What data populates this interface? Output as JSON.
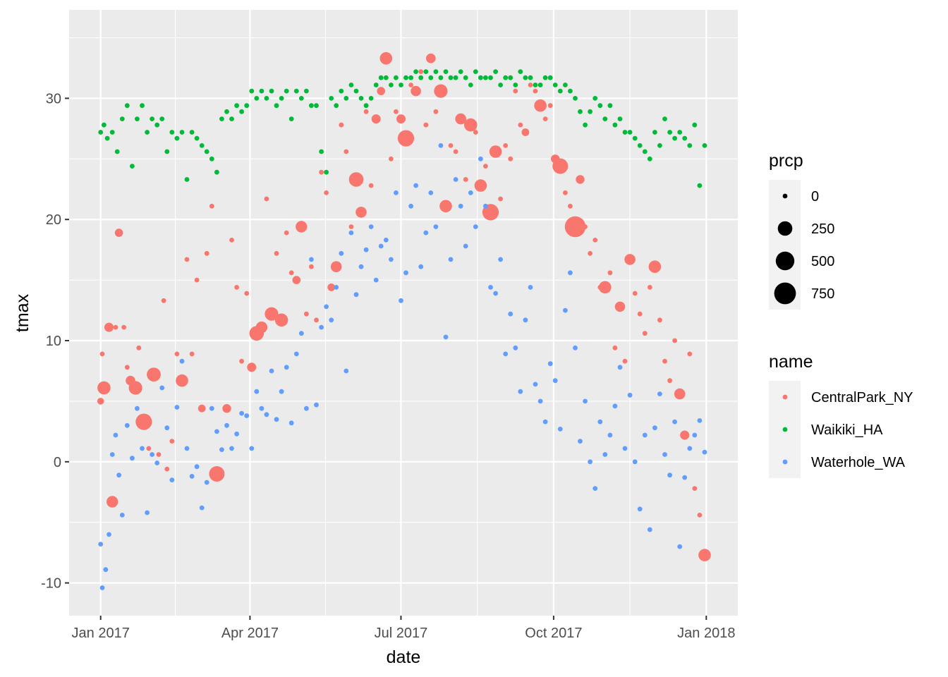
{
  "chart_data": {
    "type": "scatter",
    "title": "",
    "xlabel": "date",
    "ylabel": "tmax",
    "x_is_date": true,
    "xlim": [
      "2016-12-13",
      "2018-01-20"
    ],
    "ylim": [
      -12.7,
      37.3
    ],
    "x_ticks": [
      {
        "value": "2017-01-01",
        "label": "Jan 2017"
      },
      {
        "value": "2017-04-01",
        "label": "Apr 2017"
      },
      {
        "value": "2017-07-01",
        "label": "Jul 2017"
      },
      {
        "value": "2017-10-01",
        "label": "Oct 2017"
      },
      {
        "value": "2018-01-01",
        "label": "Jan 2018"
      }
    ],
    "y_ticks": [
      {
        "value": -10,
        "label": "-10"
      },
      {
        "value": 0,
        "label": "0"
      },
      {
        "value": 10,
        "label": "10"
      },
      {
        "value": 20,
        "label": "20"
      },
      {
        "value": 30,
        "label": "30"
      }
    ],
    "grid": true,
    "panel_background": "#ebebeb",
    "size_legend": {
      "title": "prcp",
      "entries": [
        {
          "value": 0,
          "label": "0"
        },
        {
          "value": 250,
          "label": "250"
        },
        {
          "value": 500,
          "label": "500"
        },
        {
          "value": 750,
          "label": "750"
        }
      ]
    },
    "color_legend": {
      "title": "name",
      "placement": "right"
    },
    "series": [
      {
        "name": "CentralPark_NY",
        "color": "#F8766D",
        "x": [
          "2017-01-01",
          "2017-01-02",
          "2017-01-03",
          "2017-01-06",
          "2017-01-08",
          "2017-01-10",
          "2017-01-12",
          "2017-01-15",
          "2017-01-17",
          "2017-01-19",
          "2017-01-22",
          "2017-01-24",
          "2017-01-27",
          "2017-01-30",
          "2017-02-02",
          "2017-02-05",
          "2017-02-08",
          "2017-02-10",
          "2017-02-13",
          "2017-02-16",
          "2017-02-19",
          "2017-02-22",
          "2017-02-25",
          "2017-02-28",
          "2017-03-03",
          "2017-03-06",
          "2017-03-09",
          "2017-03-12",
          "2017-03-15",
          "2017-03-18",
          "2017-03-21",
          "2017-03-24",
          "2017-03-27",
          "2017-03-30",
          "2017-04-02",
          "2017-04-05",
          "2017-04-08",
          "2017-04-11",
          "2017-04-14",
          "2017-04-17",
          "2017-04-20",
          "2017-04-23",
          "2017-04-26",
          "2017-04-29",
          "2017-05-02",
          "2017-05-05",
          "2017-05-08",
          "2017-05-11",
          "2017-05-14",
          "2017-05-17",
          "2017-05-20",
          "2017-05-23",
          "2017-05-26",
          "2017-05-29",
          "2017-06-01",
          "2017-06-04",
          "2017-06-07",
          "2017-06-10",
          "2017-06-13",
          "2017-06-16",
          "2017-06-19",
          "2017-06-22",
          "2017-06-25",
          "2017-06-28",
          "2017-07-01",
          "2017-07-04",
          "2017-07-07",
          "2017-07-10",
          "2017-07-13",
          "2017-07-16",
          "2017-07-19",
          "2017-07-22",
          "2017-07-25",
          "2017-07-28",
          "2017-07-31",
          "2017-08-03",
          "2017-08-06",
          "2017-08-09",
          "2017-08-12",
          "2017-08-15",
          "2017-08-18",
          "2017-08-21",
          "2017-08-24",
          "2017-08-27",
          "2017-08-30",
          "2017-09-02",
          "2017-09-05",
          "2017-09-08",
          "2017-09-11",
          "2017-09-14",
          "2017-09-17",
          "2017-09-20",
          "2017-09-23",
          "2017-09-26",
          "2017-09-29",
          "2017-10-02",
          "2017-10-05",
          "2017-10-08",
          "2017-10-11",
          "2017-10-14",
          "2017-10-17",
          "2017-10-20",
          "2017-10-23",
          "2017-10-26",
          "2017-10-29",
          "2017-11-01",
          "2017-11-04",
          "2017-11-07",
          "2017-11-10",
          "2017-11-13",
          "2017-11-16",
          "2017-11-19",
          "2017-11-22",
          "2017-11-25",
          "2017-11-28",
          "2017-12-01",
          "2017-12-04",
          "2017-12-07",
          "2017-12-10",
          "2017-12-13",
          "2017-12-16",
          "2017-12-19",
          "2017-12-22",
          "2017-12-25",
          "2017-12-28",
          "2017-12-31"
        ],
        "y": [
          5.0,
          8.9,
          6.1,
          11.1,
          -3.3,
          11.1,
          18.9,
          11.1,
          7.8,
          6.7,
          6.1,
          9.4,
          3.3,
          1.1,
          7.2,
          0.6,
          13.3,
          -0.6,
          1.7,
          8.9,
          6.7,
          16.7,
          8.9,
          15.0,
          4.4,
          17.2,
          21.1,
          -1.0,
          -1.0,
          4.4,
          18.3,
          14.4,
          8.3,
          13.9,
          7.8,
          10.6,
          11.1,
          21.7,
          12.2,
          17.2,
          11.7,
          18.9,
          15.6,
          15.0,
          19.4,
          12.2,
          16.1,
          11.7,
          23.9,
          22.2,
          14.4,
          16.1,
          27.8,
          25.6,
          19.4,
          23.3,
          20.6,
          28.9,
          22.8,
          28.3,
          30.6,
          33.3,
          25.0,
          28.9,
          28.3,
          26.7,
          31.1,
          30.6,
          32.2,
          27.8,
          33.3,
          28.9,
          30.6,
          21.1,
          26.1,
          25.6,
          28.3,
          23.3,
          27.8,
          27.2,
          22.8,
          24.4,
          20.6,
          25.6,
          21.7,
          26.1,
          25.0,
          30.6,
          27.8,
          27.2,
          31.1,
          30.6,
          29.4,
          28.3,
          29.4,
          25.0,
          24.4,
          22.2,
          21.1,
          19.4,
          23.3,
          19.4,
          17.2,
          18.3,
          14.4,
          14.4,
          15.6,
          9.4,
          12.8,
          8.3,
          16.7,
          13.9,
          12.2,
          10.6,
          14.4,
          16.1,
          11.7,
          8.3,
          6.7,
          10.0,
          5.6,
          2.2,
          8.9,
          -2.2,
          -4.4,
          -7.7
        ],
        "prcp": [
          10,
          0,
          180,
          50,
          120,
          0,
          30,
          0,
          0,
          60,
          200,
          0,
          350,
          0,
          220,
          0,
          0,
          0,
          0,
          0,
          150,
          0,
          0,
          0,
          20,
          0,
          0,
          300,
          0,
          40,
          0,
          0,
          0,
          0,
          50,
          250,
          120,
          0,
          200,
          0,
          180,
          0,
          0,
          30,
          120,
          0,
          0,
          0,
          0,
          0,
          20,
          100,
          0,
          0,
          0,
          250,
          100,
          0,
          0,
          50,
          30,
          150,
          0,
          0,
          50,
          350,
          0,
          80,
          0,
          0,
          60,
          0,
          200,
          150,
          0,
          0,
          100,
          0,
          180,
          0,
          150,
          0,
          350,
          150,
          0,
          0,
          0,
          0,
          0,
          20,
          0,
          0,
          150,
          0,
          0,
          40,
          300,
          0,
          0,
          680,
          40,
          0,
          0,
          0,
          0,
          150,
          0,
          0,
          80,
          0,
          100,
          0,
          0,
          0,
          0,
          150,
          0,
          0,
          0,
          0,
          100,
          50,
          0,
          0,
          0,
          150,
          50,
          0
        ]
      },
      {
        "name": "Waikiki_HA",
        "color": "#00BA38",
        "x": [
          "2017-01-01",
          "2017-01-03",
          "2017-01-05",
          "2017-01-08",
          "2017-01-11",
          "2017-01-14",
          "2017-01-17",
          "2017-01-20",
          "2017-01-23",
          "2017-01-26",
          "2017-01-29",
          "2017-02-01",
          "2017-02-04",
          "2017-02-07",
          "2017-02-10",
          "2017-02-13",
          "2017-02-16",
          "2017-02-19",
          "2017-02-22",
          "2017-02-25",
          "2017-02-28",
          "2017-03-03",
          "2017-03-06",
          "2017-03-09",
          "2017-03-12",
          "2017-03-15",
          "2017-03-18",
          "2017-03-21",
          "2017-03-24",
          "2017-03-27",
          "2017-03-30",
          "2017-04-02",
          "2017-04-05",
          "2017-04-08",
          "2017-04-11",
          "2017-04-14",
          "2017-04-17",
          "2017-04-20",
          "2017-04-23",
          "2017-04-26",
          "2017-04-29",
          "2017-05-02",
          "2017-05-05",
          "2017-05-08",
          "2017-05-11",
          "2017-05-14",
          "2017-05-17",
          "2017-05-20",
          "2017-05-23",
          "2017-05-26",
          "2017-05-29",
          "2017-06-01",
          "2017-06-04",
          "2017-06-07",
          "2017-06-10",
          "2017-06-13",
          "2017-06-16",
          "2017-06-19",
          "2017-06-22",
          "2017-06-25",
          "2017-06-28",
          "2017-07-01",
          "2017-07-04",
          "2017-07-07",
          "2017-07-10",
          "2017-07-13",
          "2017-07-16",
          "2017-07-19",
          "2017-07-22",
          "2017-07-25",
          "2017-07-28",
          "2017-07-31",
          "2017-08-03",
          "2017-08-06",
          "2017-08-09",
          "2017-08-12",
          "2017-08-15",
          "2017-08-18",
          "2017-08-21",
          "2017-08-24",
          "2017-08-27",
          "2017-08-30",
          "2017-09-02",
          "2017-09-05",
          "2017-09-08",
          "2017-09-11",
          "2017-09-14",
          "2017-09-17",
          "2017-09-20",
          "2017-09-23",
          "2017-09-26",
          "2017-09-29",
          "2017-10-02",
          "2017-10-05",
          "2017-10-08",
          "2017-10-11",
          "2017-10-14",
          "2017-10-17",
          "2017-10-20",
          "2017-10-23",
          "2017-10-26",
          "2017-10-29",
          "2017-11-01",
          "2017-11-04",
          "2017-11-07",
          "2017-11-10",
          "2017-11-13",
          "2017-11-16",
          "2017-11-19",
          "2017-11-22",
          "2017-11-25",
          "2017-11-28",
          "2017-12-01",
          "2017-12-04",
          "2017-12-07",
          "2017-12-10",
          "2017-12-13",
          "2017-12-16",
          "2017-12-19",
          "2017-12-22",
          "2017-12-25",
          "2017-12-28",
          "2017-12-31"
        ],
        "y": [
          27.2,
          27.8,
          26.7,
          27.2,
          25.6,
          28.3,
          29.4,
          24.4,
          28.3,
          29.4,
          27.2,
          28.3,
          27.8,
          28.3,
          25.6,
          27.2,
          26.7,
          27.2,
          23.3,
          27.2,
          26.7,
          26.1,
          25.6,
          25.0,
          23.9,
          28.3,
          28.9,
          28.3,
          29.4,
          28.9,
          29.4,
          30.6,
          30.0,
          30.6,
          30.0,
          30.6,
          29.4,
          30.0,
          30.6,
          28.3,
          30.6,
          30.0,
          30.6,
          29.4,
          29.4,
          25.6,
          23.9,
          30.0,
          29.4,
          30.6,
          30.0,
          31.1,
          30.6,
          30.0,
          29.4,
          30.0,
          31.1,
          31.7,
          31.7,
          31.1,
          31.7,
          31.1,
          31.7,
          31.7,
          32.2,
          31.7,
          32.2,
          31.7,
          32.2,
          31.7,
          32.2,
          31.7,
          31.7,
          32.2,
          31.7,
          31.1,
          32.2,
          31.7,
          31.7,
          31.7,
          32.2,
          31.1,
          31.7,
          31.7,
          31.1,
          32.2,
          31.7,
          31.7,
          31.1,
          31.1,
          31.7,
          31.7,
          31.1,
          30.6,
          31.1,
          30.6,
          30.0,
          28.9,
          27.8,
          28.9,
          30.0,
          29.4,
          28.3,
          29.4,
          27.8,
          28.3,
          27.2,
          27.2,
          26.7,
          26.1,
          25.6,
          25.0,
          27.2,
          26.1,
          28.3,
          27.2,
          26.7,
          27.2,
          26.7,
          26.1,
          27.8,
          22.8,
          26.1
        ]
      },
      {
        "name": "Waterhole_WA",
        "color": "#619CFF",
        "x": [
          "2017-01-01",
          "2017-01-02",
          "2017-01-04",
          "2017-01-06",
          "2017-01-08",
          "2017-01-10",
          "2017-01-12",
          "2017-01-14",
          "2017-01-17",
          "2017-01-20",
          "2017-01-23",
          "2017-01-26",
          "2017-01-29",
          "2017-02-01",
          "2017-02-04",
          "2017-02-07",
          "2017-02-10",
          "2017-02-13",
          "2017-02-16",
          "2017-02-19",
          "2017-02-22",
          "2017-02-25",
          "2017-02-28",
          "2017-03-03",
          "2017-03-06",
          "2017-03-09",
          "2017-03-12",
          "2017-03-15",
          "2017-03-18",
          "2017-03-21",
          "2017-03-24",
          "2017-03-27",
          "2017-03-30",
          "2017-04-02",
          "2017-04-05",
          "2017-04-08",
          "2017-04-11",
          "2017-04-14",
          "2017-04-17",
          "2017-04-20",
          "2017-04-23",
          "2017-04-26",
          "2017-04-29",
          "2017-05-02",
          "2017-05-05",
          "2017-05-08",
          "2017-05-11",
          "2017-05-14",
          "2017-05-17",
          "2017-05-20",
          "2017-05-23",
          "2017-05-26",
          "2017-05-29",
          "2017-06-01",
          "2017-06-04",
          "2017-06-07",
          "2017-06-10",
          "2017-06-13",
          "2017-06-16",
          "2017-06-19",
          "2017-06-22",
          "2017-06-25",
          "2017-06-28",
          "2017-07-01",
          "2017-07-04",
          "2017-07-07",
          "2017-07-10",
          "2017-07-13",
          "2017-07-16",
          "2017-07-19",
          "2017-07-22",
          "2017-07-25",
          "2017-07-28",
          "2017-07-31",
          "2017-08-03",
          "2017-08-06",
          "2017-08-09",
          "2017-08-12",
          "2017-08-15",
          "2017-08-18",
          "2017-08-21",
          "2017-08-24",
          "2017-08-27",
          "2017-08-30",
          "2017-09-02",
          "2017-09-05",
          "2017-09-08",
          "2017-09-11",
          "2017-09-14",
          "2017-09-17",
          "2017-09-20",
          "2017-09-23",
          "2017-09-26",
          "2017-09-29",
          "2017-10-02",
          "2017-10-05",
          "2017-10-08",
          "2017-10-11",
          "2017-10-14",
          "2017-10-17",
          "2017-10-20",
          "2017-10-23",
          "2017-10-26",
          "2017-10-29",
          "2017-11-01",
          "2017-11-04",
          "2017-11-07",
          "2017-11-10",
          "2017-11-13",
          "2017-11-16",
          "2017-11-19",
          "2017-11-22",
          "2017-11-25",
          "2017-11-28",
          "2017-12-01",
          "2017-12-04",
          "2017-12-07",
          "2017-12-10",
          "2017-12-13",
          "2017-12-16",
          "2017-12-19",
          "2017-12-22",
          "2017-12-25",
          "2017-12-28",
          "2017-12-31"
        ],
        "y": [
          -6.8,
          -10.4,
          -8.9,
          -6.0,
          0.6,
          2.2,
          -1.1,
          -4.4,
          3.0,
          0.3,
          4.4,
          1.1,
          -4.2,
          0.6,
          -0.1,
          6.1,
          2.8,
          -1.5,
          4.5,
          8.3,
          1.1,
          -1.2,
          -0.4,
          -3.8,
          -1.7,
          4.4,
          2.5,
          1.0,
          3.0,
          1.1,
          2.3,
          4.0,
          3.8,
          1.1,
          5.8,
          4.4,
          3.9,
          7.5,
          3.5,
          5.8,
          7.8,
          3.2,
          8.9,
          10.6,
          4.4,
          16.7,
          4.7,
          11.1,
          12.8,
          11.7,
          14.4,
          17.2,
          7.5,
          18.9,
          13.8,
          16.1,
          17.5,
          19.4,
          15.0,
          17.8,
          18.3,
          16.7,
          22.2,
          13.3,
          15.6,
          21.1,
          22.8,
          16.1,
          18.9,
          22.2,
          19.4,
          26.1,
          10.3,
          16.7,
          23.3,
          21.1,
          17.8,
          22.2,
          19.4,
          25.0,
          21.1,
          14.4,
          13.9,
          16.7,
          8.9,
          12.2,
          9.4,
          5.8,
          11.7,
          14.4,
          6.4,
          5.0,
          3.3,
          8.1,
          6.7,
          2.7,
          12.5,
          15.6,
          9.4,
          1.7,
          5.0,
          0.0,
          -2.2,
          3.3,
          0.6,
          2.2,
          4.6,
          7.8,
          1.1,
          5.5,
          0.0,
          -3.9,
          2.2,
          -5.6,
          2.8,
          5.6,
          0.6,
          -1.1,
          3.3,
          -7.0,
          -1.3,
          1.1,
          2.2,
          3.4,
          0.8
        ]
      }
    ]
  }
}
